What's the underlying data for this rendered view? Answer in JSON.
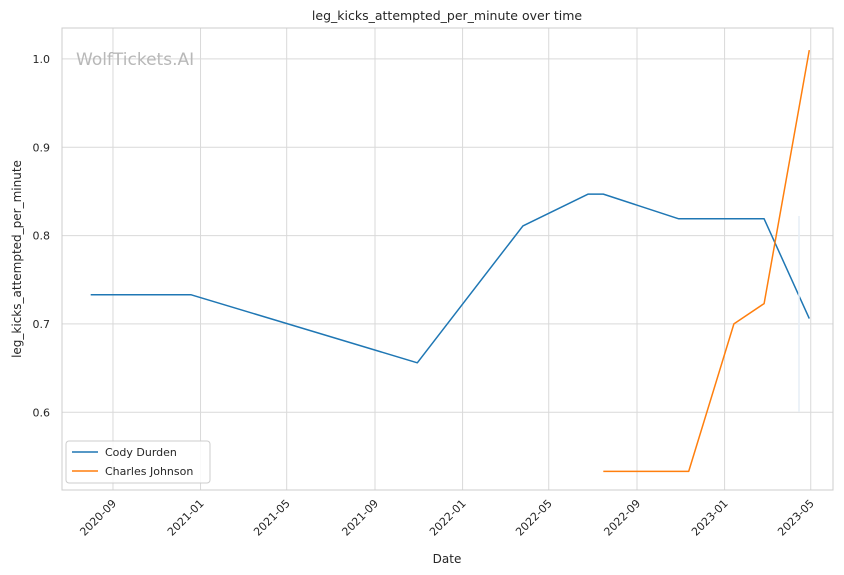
{
  "chart_data": {
    "type": "line",
    "title": "leg_kicks_attempted_per_minute over time",
    "xlabel": "Date",
    "ylabel": "leg_kicks_attempted_per_minute",
    "watermark": "WolfTickets.AI",
    "x_ticks": [
      "2020-09",
      "2021-01",
      "2021-05",
      "2021-09",
      "2022-01",
      "2022-05",
      "2022-09",
      "2023-01",
      "2023-05"
    ],
    "y_ticks": [
      0.6,
      0.7,
      0.8,
      0.9,
      1.0
    ],
    "y_tick_labels": [
      "0.6",
      "0.7",
      "0.8",
      "0.9",
      "1.0"
    ],
    "xlim": [
      "2020-06-22",
      "2023-06-01"
    ],
    "ylim": [
      0.512,
      1.035
    ],
    "grid": true,
    "legend_position": "lower-left",
    "series": [
      {
        "name": "Cody Durden",
        "color": "#1f77b4",
        "x": [
          "2020-08-01",
          "2020-12-19",
          "2021-10-30",
          "2022-03-26",
          "2022-06-25",
          "2022-07-16",
          "2022-10-29",
          "2023-02-25",
          "2023-04-29"
        ],
        "y": [
          0.733,
          0.733,
          0.656,
          0.811,
          0.847,
          0.847,
          0.819,
          0.819,
          0.706
        ]
      },
      {
        "name": "Charles Johnson",
        "color": "#ff7f0e",
        "x": [
          "2022-07-16",
          "2022-11-12",
          "2023-01-14",
          "2023-02-25",
          "2023-04-29"
        ],
        "y": [
          0.533,
          0.533,
          0.7,
          0.723,
          1.01
        ]
      }
    ]
  }
}
